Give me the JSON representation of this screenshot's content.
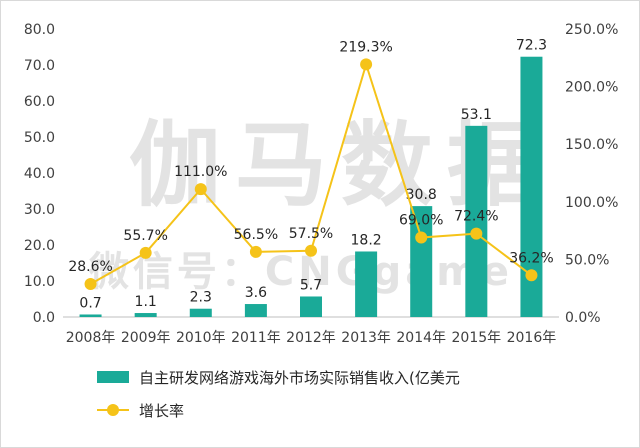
{
  "chart_data": {
    "type": "bar+line",
    "categories": [
      "2008年",
      "2009年",
      "2010年",
      "2011年",
      "2012年",
      "2013年",
      "2014年",
      "2015年",
      "2016年"
    ],
    "series": [
      {
        "name": "自主研发网络游戏海外市场实际销售收入(亿美元",
        "kind": "bar",
        "axis": "left",
        "values": [
          0.7,
          1.1,
          2.3,
          3.6,
          5.7,
          18.2,
          30.8,
          53.1,
          72.3
        ],
        "labels": [
          "0.7",
          "1.1",
          "2.3",
          "3.6",
          "5.7",
          "18.2",
          "30.8",
          "53.1",
          "72.3"
        ]
      },
      {
        "name": "增长率",
        "kind": "line",
        "axis": "right",
        "values": [
          28.6,
          55.7,
          111.0,
          56.5,
          57.5,
          219.3,
          69.0,
          72.4,
          36.2
        ],
        "labels": [
          "28.6%",
          "55.7%",
          "111.0%",
          "56.5%",
          "57.5%",
          "219.3%",
          "69.0%",
          "72.4%",
          "36.2%"
        ]
      }
    ],
    "y_left": {
      "min": 0,
      "max": 80,
      "ticks": [
        "0.0",
        "10.0",
        "20.0",
        "30.0",
        "40.0",
        "50.0",
        "60.0",
        "70.0",
        "80.0"
      ]
    },
    "y_right": {
      "min": 0,
      "max": 250,
      "ticks": [
        "0.0%",
        "50.0%",
        "100.0%",
        "150.0%",
        "200.0%",
        "250.0%"
      ]
    },
    "legend_position": "bottom-center",
    "watermark": {
      "main": "伽马数据",
      "sub": "微信号：CNGgame"
    },
    "colors": {
      "bar": "#1aaa98",
      "line": "#f5c319",
      "marker": "#f5c319",
      "axis": "#bfbfbf"
    }
  }
}
